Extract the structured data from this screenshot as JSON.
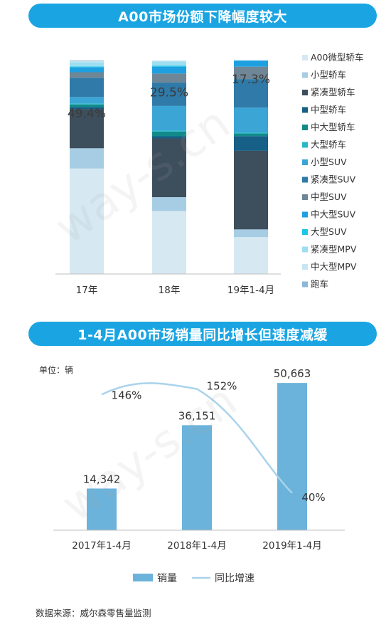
{
  "banners": {
    "top": "A00市场份额下降幅度较大",
    "bottom": "1-4月A00市场销量同比增长但速度减缓"
  },
  "chart_data": [
    {
      "type": "bar",
      "stacked": true,
      "categories": [
        "17年",
        "18年",
        "19年1-4月"
      ],
      "ylim": [
        0,
        100
      ],
      "annotations": [
        "49.4%",
        "29.5%",
        "17.3%"
      ],
      "legend_position": "right",
      "series": [
        {
          "name": "A00微型轿车",
          "color": "#d6e8f2",
          "values": [
            49.4,
            29.5,
            17.3
          ]
        },
        {
          "name": "小型轿车",
          "color": "#a6cde4",
          "values": [
            9.5,
            6.5,
            3.6
          ]
        },
        {
          "name": "紧凑型轿车",
          "color": "#3d4e5c",
          "values": [
            18.3,
            27.5,
            36.8
          ]
        },
        {
          "name": "中型轿车",
          "color": "#165f86",
          "values": [
            1.0,
            1.0,
            6.9
          ]
        },
        {
          "name": "中大型轿车",
          "color": "#138a8a",
          "values": [
            1.2,
            2.2,
            1.2
          ]
        },
        {
          "name": "大型轿车",
          "color": "#28b8c5",
          "values": [
            0.5,
            0.5,
            0.5
          ]
        },
        {
          "name": "小型SUV",
          "color": "#3ba5d6",
          "values": [
            3.0,
            11.5,
            11.6
          ]
        },
        {
          "name": "紧凑型SUV",
          "color": "#2f7aa8",
          "values": [
            9.0,
            11.0,
            13.4
          ]
        },
        {
          "name": "中型SUV",
          "color": "#6f8696",
          "values": [
            2.6,
            4.2,
            5.8
          ]
        },
        {
          "name": "中大型SUV",
          "color": "#1ea0e0",
          "values": [
            2.4,
            3.2,
            2.9
          ]
        },
        {
          "name": "大型SUV",
          "color": "#1cc7e6",
          "values": [
            0.3,
            0.4,
            0.0
          ]
        },
        {
          "name": "紧凑型MPV",
          "color": "#9ddff0",
          "values": [
            2.0,
            2.0,
            0.0
          ]
        },
        {
          "name": "中大型MPV",
          "color": "#c6e6f3",
          "values": [
            0.5,
            0.5,
            0.0
          ]
        },
        {
          "name": "跑车",
          "color": "#8ab8d9",
          "values": [
            0.3,
            0.0,
            0.0
          ]
        }
      ]
    },
    {
      "type": "bar",
      "categories": [
        "2017年1-4月",
        "2018年1-4月",
        "2019年1-4月"
      ],
      "unit_label": "单位：辆",
      "ylim": [
        0,
        60000
      ],
      "legend_position": "bottom",
      "series": [
        {
          "name": "销量",
          "type": "bar",
          "color": "#6bb3db",
          "values": [
            14342,
            36151,
            50663
          ],
          "labels": [
            "14,342",
            "36,151",
            "50,663"
          ]
        },
        {
          "name": "同比增速",
          "type": "line",
          "color": "#a9d3eb",
          "values": [
            146,
            152,
            40
          ],
          "labels": [
            "146%",
            "152%",
            "40%"
          ],
          "ylim": [
            0,
            180
          ]
        }
      ]
    }
  ],
  "source": "数据来源：威尔森零售量监测",
  "watermark": "way-s.cn"
}
